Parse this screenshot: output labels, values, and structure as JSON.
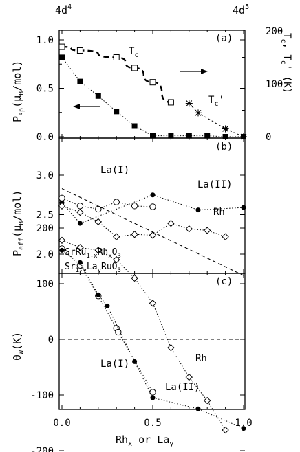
{
  "chart_data": [
    {
      "panel": "(a)",
      "type": "scatter",
      "ylabel": "P_sp (μ_B/mol)",
      "y2label": "T_c, T_c' (K)",
      "ylim": [
        0,
        1.0
      ],
      "y2lim": [
        0,
        200
      ],
      "yticks": [
        "0.0",
        "0.5",
        "1.0"
      ],
      "y2ticks": [
        "0",
        "100",
        "200"
      ],
      "top_axis_labels": [
        "4d⁴",
        "4d⁵"
      ],
      "annotations": [
        "T_c",
        "T_c'"
      ],
      "series": [
        {
          "axis": "left",
          "marker": "filled-square",
          "x": [
            0,
            0.1,
            0.2,
            0.3,
            0.4,
            0.5,
            0.6,
            0.7,
            0.8,
            0.9,
            1.0
          ],
          "y": [
            0.82,
            0.57,
            0.42,
            0.26,
            0.11,
            0.01,
            0.01,
            0.01,
            0.01,
            0.0,
            0.0
          ]
        },
        {
          "axis": "right",
          "marker": "open-square",
          "x": [
            0,
            0.1,
            0.3,
            0.4,
            0.5,
            0.6
          ],
          "y": [
            170,
            163,
            150,
            130,
            103,
            65
          ]
        },
        {
          "axis": "right",
          "marker": "asterisk",
          "x": [
            0.7,
            0.75,
            0.9,
            1.0
          ],
          "y": [
            63,
            45,
            15,
            0
          ]
        }
      ]
    },
    {
      "panel": "(b)",
      "type": "scatter",
      "ylabel": "P_eff (μ_B/mol)",
      "ylim": [
        1.7,
        3.1
      ],
      "yticks": [
        "2.0",
        "2.5",
        "3.0"
      ],
      "annotations": [
        "La(I)",
        "La(II)",
        "Rh",
        "SrRu1-xRhxO3",
        "Sr1-yLayRuO3"
      ],
      "series": [
        {
          "name": "La(I)",
          "marker": "open-circle",
          "x": [
            0,
            0.1,
            0.2,
            0.3,
            0.4,
            0.5
          ],
          "y": [
            2.71,
            2.61,
            2.57,
            2.66,
            2.61,
            2.6
          ]
        },
        {
          "name": "La(II)",
          "marker": "filled-circle",
          "x": [
            0,
            0.1,
            0.5,
            0.75,
            1.0
          ],
          "y": [
            2.65,
            2.39,
            2.75,
            2.56,
            2.59
          ]
        },
        {
          "name": "Rh",
          "marker": "open-diamond",
          "x": [
            0,
            0.1,
            0.2,
            0.3,
            0.4,
            0.5,
            0.6,
            0.7,
            0.8,
            0.9
          ],
          "y": [
            2.61,
            2.53,
            2.41,
            2.22,
            2.25,
            2.24,
            2.39,
            2.32,
            2.3,
            2.22
          ]
        },
        {
          "name": "",
          "line": "dashed",
          "x": [
            0,
            1.0
          ],
          "y": [
            2.83,
            1.73
          ]
        }
      ]
    },
    {
      "panel": "(c)",
      "type": "scatter",
      "ylabel": "θ_W (K)",
      "xlabel": "Rh_x or La_y",
      "ylim": [
        -200,
        200
      ],
      "yticks": [
        "200",
        "100",
        "0",
        "-100",
        "-200"
      ],
      "xticks": [
        "0.0",
        "0.5",
        "1.0"
      ],
      "annotations": [
        "La(I)",
        "Rh",
        "La(II)"
      ],
      "series": [
        {
          "name": "La(I)",
          "marker": "open-circle",
          "x": [
            0,
            0.1,
            0.2,
            0.3,
            0.31,
            0.5
          ],
          "y": [
            163,
            133,
            78,
            20,
            13,
            -95
          ]
        },
        {
          "name": "La(II)",
          "marker": "filled-circle",
          "x": [
            0,
            0.1,
            0.2,
            0.25,
            0.4,
            0.5,
            0.75,
            1.0
          ],
          "y": [
            160,
            138,
            80,
            60,
            -40,
            -105,
            -125,
            -160
          ]
        },
        {
          "name": "Rh",
          "marker": "open-diamond",
          "x": [
            0,
            0.1,
            0.2,
            0.3,
            0.4,
            0.5,
            0.6,
            0.7,
            0.8,
            0.9
          ],
          "y": [
            178,
            165,
            160,
            143,
            110,
            65,
            -15,
            -68,
            -110,
            -163
          ]
        },
        {
          "name": "",
          "line": "dashed",
          "x": [
            0,
            1.0
          ],
          "y": [
            0,
            0
          ]
        }
      ]
    }
  ]
}
